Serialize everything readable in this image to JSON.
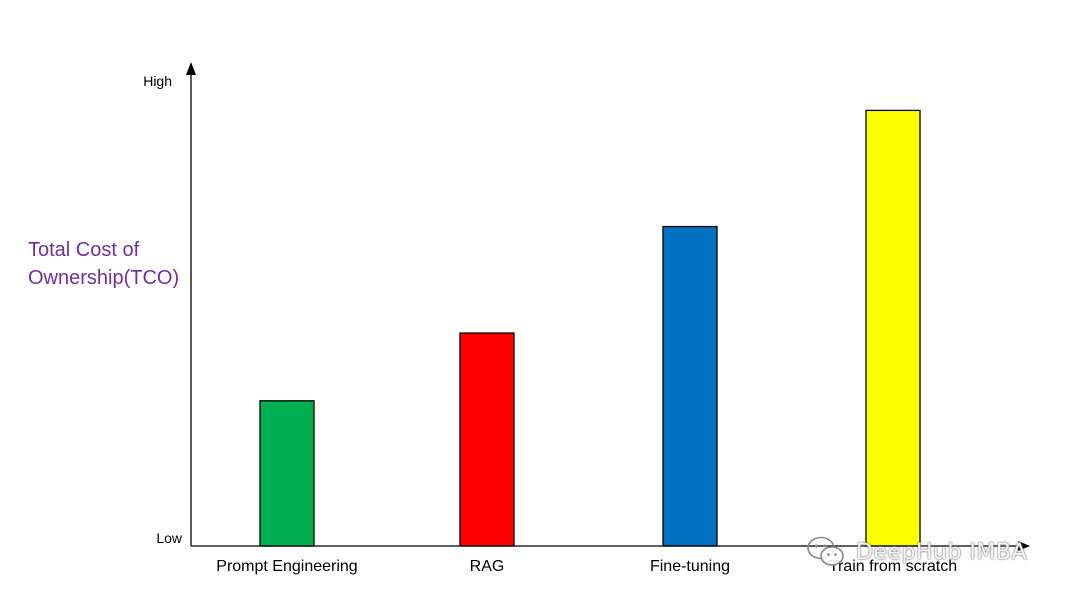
{
  "chart_data": {
    "type": "bar",
    "categories": [
      "Prompt Engineering",
      "RAG",
      "Fine-tuning",
      "Train from scratch"
    ],
    "values": [
      3,
      4.4,
      6.6,
      9
    ],
    "colors": [
      "#00B050",
      "#FF0000",
      "#0070C0",
      "#FFFF00"
    ],
    "ylabel_lines": [
      "Total Cost of",
      "Ownership(TCO)"
    ],
    "ylabel_color": "#7030A0",
    "ytick_high": "High",
    "ytick_low": "Low",
    "ylim": [
      0,
      10
    ],
    "grid": false
  },
  "watermark": {
    "text": "DeepHub IMBA",
    "icon": "wechat-icon"
  }
}
